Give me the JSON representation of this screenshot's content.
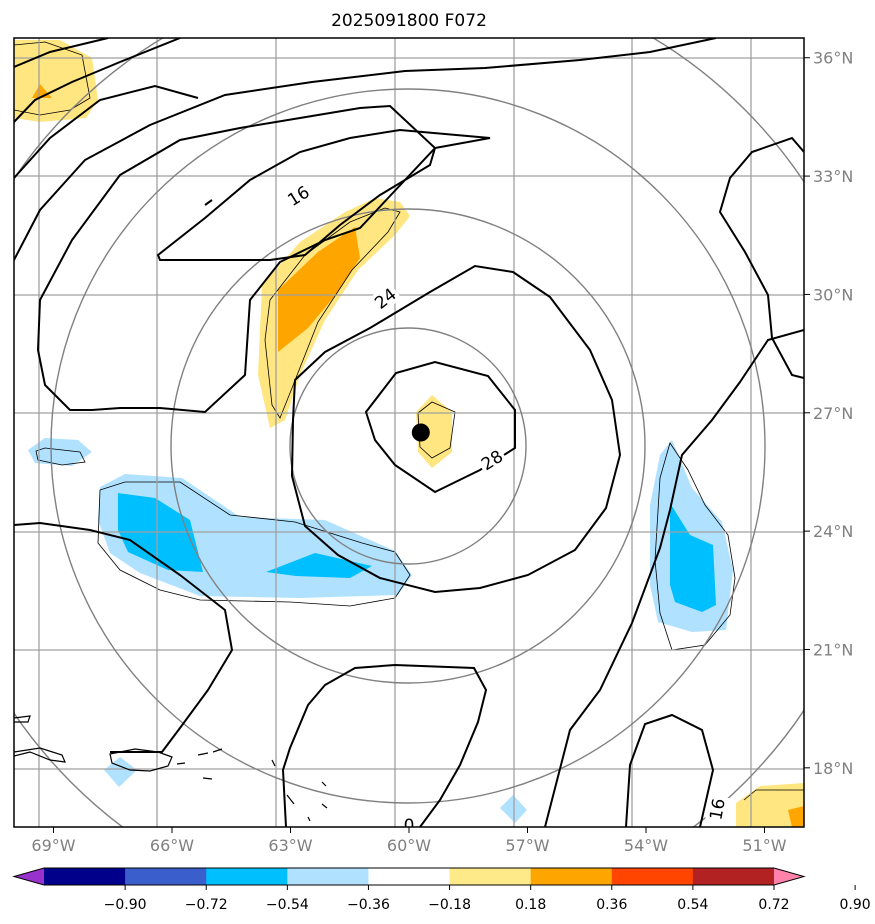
{
  "title": "2025091800 F072",
  "map": {
    "lon_range": [
      -70,
      -50
    ],
    "lat_range": [
      16.5,
      36.5
    ],
    "lon_ticks": [
      {
        "value": -69,
        "label": "69°W"
      },
      {
        "value": -66,
        "label": "66°W"
      },
      {
        "value": -63,
        "label": "63°W"
      },
      {
        "value": -60,
        "label": "60°W"
      },
      {
        "value": -57,
        "label": "57°W"
      },
      {
        "value": -54,
        "label": "54°W"
      },
      {
        "value": -51,
        "label": "51°W"
      }
    ],
    "lat_ticks": [
      {
        "value": 36,
        "label": "36°N"
      },
      {
        "value": 33,
        "label": "33°N"
      },
      {
        "value": 30,
        "label": "30°N"
      },
      {
        "value": 27,
        "label": "27°N"
      },
      {
        "value": 24,
        "label": "24°N"
      },
      {
        "value": 21,
        "label": "21°N"
      },
      {
        "value": 18,
        "label": "18°N"
      }
    ],
    "storm_center": {
      "lon": -59.7,
      "lat": 26.5
    },
    "contour_labels": [
      {
        "text": "16",
        "lon": -62.8,
        "lat": 32.5,
        "angle": -32
      },
      {
        "text": "24",
        "lon": -60.6,
        "lat": 29.9,
        "angle": -38
      },
      {
        "text": "28",
        "lon": -57.9,
        "lat": 25.8,
        "angle": -32
      },
      {
        "text": "16",
        "lon": -52.2,
        "lat": 16.95,
        "angle": -80
      },
      {
        "text": "0",
        "lon": -60.0,
        "lat": 16.55,
        "angle": 0
      }
    ]
  },
  "colorbar": {
    "colors": [
      "#9932cc",
      "#00008b",
      "#3a5fcd",
      "#00bfff",
      "#b0e2ff",
      "#ffffff",
      "#ffea8a",
      "#ffa500",
      "#ff4500",
      "#b22222",
      "#ff82ab"
    ],
    "ticks": [
      "−0.90",
      "−0.72",
      "−0.54",
      "−0.36",
      "−0.18",
      "0.18",
      "0.36",
      "0.54",
      "0.72",
      "0.90"
    ]
  },
  "colors": {
    "grid": "#a0a0a0",
    "range_rings": "#808080",
    "contour": "#000000",
    "pos_light": "#ffe680",
    "pos_orange": "#ffa500",
    "neg_light": "#b0e2ff",
    "neg_blue": "#00bfff"
  }
}
